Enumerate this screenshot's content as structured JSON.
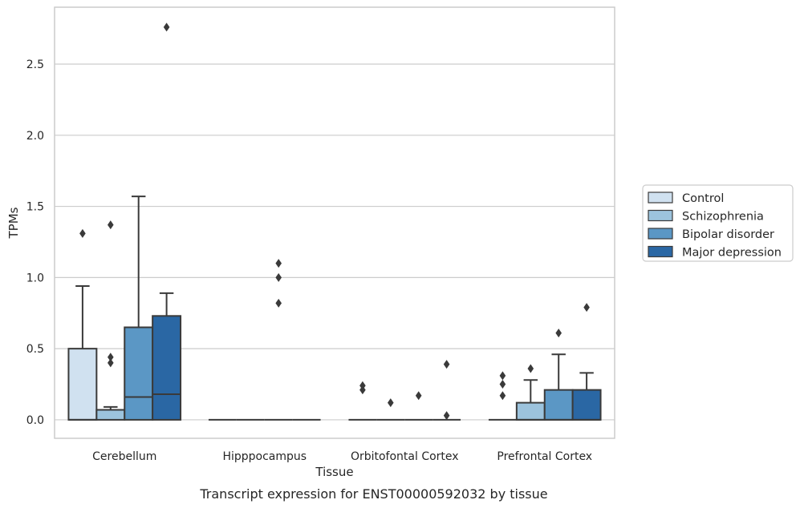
{
  "caption": "Transcript expression for ENST00000592032 by tissue",
  "chart_data": {
    "type": "box",
    "title": "",
    "xlabel": "Tissue",
    "ylabel": "TPMs",
    "ylim": [
      -0.13,
      2.9
    ],
    "yticks": [
      "0.0",
      "0.5",
      "1.0",
      "1.5",
      "2.0",
      "2.5"
    ],
    "grid": true,
    "legend_placement": "right",
    "categories": [
      "Cerebellum",
      "Hipppocampus",
      "Orbitofontal Cortex",
      "Prefrontal Cortex"
    ],
    "series": [
      {
        "name": "Control",
        "color": "#d0e1f0",
        "boxes": [
          {
            "q1": 0.0,
            "median": 0.0,
            "q3": 0.5,
            "wlo": 0.0,
            "whi": 0.94,
            "outliers": [
              1.31
            ]
          },
          {
            "q1": 0.0,
            "median": 0.0,
            "q3": 0.0,
            "wlo": 0.0,
            "whi": 0.0,
            "outliers": []
          },
          {
            "q1": 0.0,
            "median": 0.0,
            "q3": 0.0,
            "wlo": 0.0,
            "whi": 0.0,
            "outliers": [
              0.21,
              0.24
            ]
          },
          {
            "q1": 0.0,
            "median": 0.0,
            "q3": 0.0,
            "wlo": 0.0,
            "whi": 0.0,
            "outliers": [
              0.17,
              0.25,
              0.31
            ]
          }
        ]
      },
      {
        "name": "Schizophrenia",
        "color": "#9cc3dd",
        "boxes": [
          {
            "q1": 0.0,
            "median": 0.07,
            "q3": 0.07,
            "wlo": 0.0,
            "whi": 0.09,
            "outliers": [
              0.4,
              0.44,
              1.37
            ]
          },
          {
            "q1": 0.0,
            "median": 0.0,
            "q3": 0.0,
            "wlo": 0.0,
            "whi": 0.0,
            "outliers": []
          },
          {
            "q1": 0.0,
            "median": 0.0,
            "q3": 0.0,
            "wlo": 0.0,
            "whi": 0.0,
            "outliers": [
              0.12
            ]
          },
          {
            "q1": 0.0,
            "median": 0.0,
            "q3": 0.12,
            "wlo": 0.0,
            "whi": 0.28,
            "outliers": [
              0.36
            ]
          }
        ]
      },
      {
        "name": "Bipolar disorder",
        "color": "#5b97c5",
        "boxes": [
          {
            "q1": 0.0,
            "median": 0.16,
            "q3": 0.65,
            "wlo": 0.0,
            "whi": 1.57,
            "outliers": []
          },
          {
            "q1": 0.0,
            "median": 0.0,
            "q3": 0.0,
            "wlo": 0.0,
            "whi": 0.0,
            "outliers": [
              0.82,
              1.0,
              1.1
            ]
          },
          {
            "q1": 0.0,
            "median": 0.0,
            "q3": 0.0,
            "wlo": 0.0,
            "whi": 0.0,
            "outliers": [
              0.17
            ]
          },
          {
            "q1": 0.0,
            "median": 0.0,
            "q3": 0.21,
            "wlo": 0.0,
            "whi": 0.46,
            "outliers": [
              0.61
            ]
          }
        ]
      },
      {
        "name": "Major depression",
        "color": "#2a67a4",
        "boxes": [
          {
            "q1": 0.0,
            "median": 0.18,
            "q3": 0.73,
            "wlo": 0.0,
            "whi": 0.89,
            "outliers": [
              2.76
            ]
          },
          {
            "q1": 0.0,
            "median": 0.0,
            "q3": 0.0,
            "wlo": 0.0,
            "whi": 0.0,
            "outliers": []
          },
          {
            "q1": 0.0,
            "median": 0.0,
            "q3": 0.0,
            "wlo": 0.0,
            "whi": 0.0,
            "outliers": [
              0.03,
              0.39
            ]
          },
          {
            "q1": 0.0,
            "median": 0.0,
            "q3": 0.21,
            "wlo": 0.0,
            "whi": 0.33,
            "outliers": [
              0.79
            ]
          }
        ]
      }
    ]
  }
}
